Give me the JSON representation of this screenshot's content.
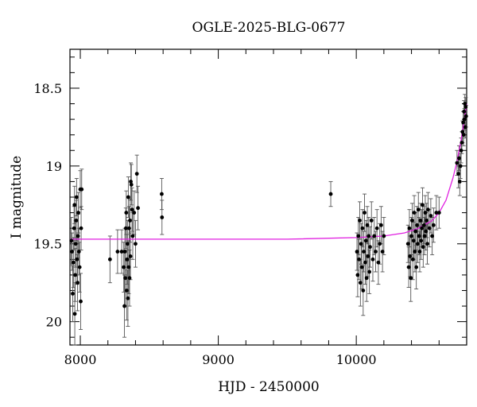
{
  "chart_data": {
    "type": "scatter",
    "title": "OGLE-2025-BLG-0677",
    "xlabel": "HJD - 2450000",
    "ylabel": "I magnitude",
    "xlim": [
      7925,
      10800
    ],
    "ylim": [
      20.15,
      18.25
    ],
    "y_inverted": true,
    "xticks": [
      8000,
      9000,
      10000
    ],
    "xtick_labels": [
      "8000",
      "9000",
      "10000"
    ],
    "yticks": [
      18.5,
      19,
      19.5,
      20
    ],
    "ytick_labels": [
      "18.5",
      "19",
      "19.5",
      "20"
    ],
    "grid": false,
    "colors": {
      "points": "#000000",
      "errorbars": "#555555",
      "model": "#e020e0"
    },
    "model_curve": {
      "name": "",
      "x": [
        7925,
        8500,
        9000,
        9500,
        10000,
        10200,
        10350,
        10450,
        10550,
        10600,
        10650,
        10700,
        10730,
        10760,
        10780,
        10800
      ],
      "y": [
        19.47,
        19.47,
        19.47,
        19.47,
        19.46,
        19.45,
        19.43,
        19.4,
        19.35,
        19.3,
        19.22,
        19.08,
        18.97,
        18.83,
        18.72,
        18.6
      ]
    },
    "series": [
      {
        "name": "",
        "points": [
          {
            "x": 7935,
            "y": 19.48,
            "err": 0.15
          },
          {
            "x": 7940,
            "y": 19.55,
            "err": 0.12
          },
          {
            "x": 7945,
            "y": 19.82,
            "err": 0.18
          },
          {
            "x": 7950,
            "y": 19.62,
            "err": 0.16
          },
          {
            "x": 7955,
            "y": 19.4,
            "err": 0.14
          },
          {
            "x": 7958,
            "y": 19.25,
            "err": 0.12
          },
          {
            "x": 7960,
            "y": 19.95,
            "err": 0.2
          },
          {
            "x": 7963,
            "y": 19.7,
            "err": 0.17
          },
          {
            "x": 7966,
            "y": 19.5,
            "err": 0.15
          },
          {
            "x": 7970,
            "y": 19.35,
            "err": 0.13
          },
          {
            "x": 7973,
            "y": 19.2,
            "err": 0.12
          },
          {
            "x": 7976,
            "y": 19.6,
            "err": 0.16
          },
          {
            "x": 7980,
            "y": 19.75,
            "err": 0.18
          },
          {
            "x": 7983,
            "y": 19.45,
            "err": 0.14
          },
          {
            "x": 7986,
            "y": 19.3,
            "err": 0.13
          },
          {
            "x": 7990,
            "y": 19.55,
            "err": 0.15
          },
          {
            "x": 7995,
            "y": 19.65,
            "err": 0.16
          },
          {
            "x": 8000,
            "y": 19.15,
            "err": 0.12
          },
          {
            "x": 8003,
            "y": 19.87,
            "err": 0.18
          },
          {
            "x": 8006,
            "y": 19.4,
            "err": 0.14
          },
          {
            "x": 8010,
            "y": 19.15,
            "err": 0.13
          },
          {
            "x": 8215,
            "y": 19.6,
            "err": 0.15
          },
          {
            "x": 8270,
            "y": 19.55,
            "err": 0.14
          },
          {
            "x": 8300,
            "y": 19.55,
            "err": 0.14
          },
          {
            "x": 8315,
            "y": 19.65,
            "err": 0.16
          },
          {
            "x": 8320,
            "y": 19.9,
            "err": 0.2
          },
          {
            "x": 8323,
            "y": 19.55,
            "err": 0.15
          },
          {
            "x": 8326,
            "y": 19.72,
            "err": 0.18
          },
          {
            "x": 8330,
            "y": 19.4,
            "err": 0.13
          },
          {
            "x": 8333,
            "y": 19.3,
            "err": 0.14
          },
          {
            "x": 8336,
            "y": 19.8,
            "err": 0.19
          },
          {
            "x": 8339,
            "y": 19.6,
            "err": 0.16
          },
          {
            "x": 8342,
            "y": 19.5,
            "err": 0.15
          },
          {
            "x": 8345,
            "y": 19.85,
            "err": 0.18
          },
          {
            "x": 8348,
            "y": 19.2,
            "err": 0.13
          },
          {
            "x": 8351,
            "y": 19.65,
            "err": 0.17
          },
          {
            "x": 8354,
            "y": 19.4,
            "err": 0.14
          },
          {
            "x": 8357,
            "y": 19.72,
            "err": 0.18
          },
          {
            "x": 8360,
            "y": 19.35,
            "err": 0.14
          },
          {
            "x": 8363,
            "y": 19.58,
            "err": 0.15
          },
          {
            "x": 8366,
            "y": 19.1,
            "err": 0.12
          },
          {
            "x": 8370,
            "y": 19.12,
            "err": 0.13
          },
          {
            "x": 8375,
            "y": 19.28,
            "err": 0.14
          },
          {
            "x": 8380,
            "y": 19.45,
            "err": 0.15
          },
          {
            "x": 8390,
            "y": 19.3,
            "err": 0.14
          },
          {
            "x": 8400,
            "y": 19.5,
            "err": 0.15
          },
          {
            "x": 8410,
            "y": 19.05,
            "err": 0.12
          },
          {
            "x": 8418,
            "y": 19.27,
            "err": 0.14
          },
          {
            "x": 8590,
            "y": 19.18,
            "err": 0.1
          },
          {
            "x": 8592,
            "y": 19.33,
            "err": 0.11
          },
          {
            "x": 9815,
            "y": 19.18,
            "err": 0.08
          },
          {
            "x": 10005,
            "y": 19.55,
            "err": 0.12
          },
          {
            "x": 10010,
            "y": 19.7,
            "err": 0.14
          },
          {
            "x": 10015,
            "y": 19.45,
            "err": 0.12
          },
          {
            "x": 10020,
            "y": 19.6,
            "err": 0.13
          },
          {
            "x": 10025,
            "y": 19.35,
            "err": 0.12
          },
          {
            "x": 10030,
            "y": 19.75,
            "err": 0.15
          },
          {
            "x": 10035,
            "y": 19.5,
            "err": 0.13
          },
          {
            "x": 10040,
            "y": 19.65,
            "err": 0.14
          },
          {
            "x": 10045,
            "y": 19.4,
            "err": 0.12
          },
          {
            "x": 10050,
            "y": 19.8,
            "err": 0.16
          },
          {
            "x": 10055,
            "y": 19.55,
            "err": 0.13
          },
          {
            "x": 10060,
            "y": 19.3,
            "err": 0.12
          },
          {
            "x": 10065,
            "y": 19.62,
            "err": 0.14
          },
          {
            "x": 10070,
            "y": 19.48,
            "err": 0.13
          },
          {
            "x": 10075,
            "y": 19.72,
            "err": 0.15
          },
          {
            "x": 10080,
            "y": 19.38,
            "err": 0.12
          },
          {
            "x": 10085,
            "y": 19.58,
            "err": 0.13
          },
          {
            "x": 10090,
            "y": 19.45,
            "err": 0.12
          },
          {
            "x": 10095,
            "y": 19.68,
            "err": 0.14
          },
          {
            "x": 10100,
            "y": 19.52,
            "err": 0.13
          },
          {
            "x": 10110,
            "y": 19.35,
            "err": 0.12
          },
          {
            "x": 10120,
            "y": 19.6,
            "err": 0.14
          },
          {
            "x": 10130,
            "y": 19.45,
            "err": 0.12
          },
          {
            "x": 10140,
            "y": 19.55,
            "err": 0.13
          },
          {
            "x": 10150,
            "y": 19.4,
            "err": 0.12
          },
          {
            "x": 10160,
            "y": 19.62,
            "err": 0.14
          },
          {
            "x": 10170,
            "y": 19.5,
            "err": 0.13
          },
          {
            "x": 10180,
            "y": 19.38,
            "err": 0.12
          },
          {
            "x": 10190,
            "y": 19.55,
            "err": 0.13
          },
          {
            "x": 10200,
            "y": 19.45,
            "err": 0.12
          },
          {
            "x": 10375,
            "y": 19.5,
            "err": 0.12
          },
          {
            "x": 10380,
            "y": 19.65,
            "err": 0.13
          },
          {
            "x": 10385,
            "y": 19.4,
            "err": 0.12
          },
          {
            "x": 10390,
            "y": 19.58,
            "err": 0.13
          },
          {
            "x": 10395,
            "y": 19.72,
            "err": 0.15
          },
          {
            "x": 10400,
            "y": 19.45,
            "err": 0.12
          },
          {
            "x": 10405,
            "y": 19.35,
            "err": 0.11
          },
          {
            "x": 10410,
            "y": 19.6,
            "err": 0.13
          },
          {
            "x": 10415,
            "y": 19.48,
            "err": 0.12
          },
          {
            "x": 10420,
            "y": 19.3,
            "err": 0.11
          },
          {
            "x": 10425,
            "y": 19.55,
            "err": 0.13
          },
          {
            "x": 10430,
            "y": 19.42,
            "err": 0.12
          },
          {
            "x": 10435,
            "y": 19.65,
            "err": 0.14
          },
          {
            "x": 10440,
            "y": 19.38,
            "err": 0.12
          },
          {
            "x": 10445,
            "y": 19.5,
            "err": 0.12
          },
          {
            "x": 10450,
            "y": 19.28,
            "err": 0.11
          },
          {
            "x": 10455,
            "y": 19.45,
            "err": 0.12
          },
          {
            "x": 10460,
            "y": 19.55,
            "err": 0.13
          },
          {
            "x": 10465,
            "y": 19.35,
            "err": 0.11
          },
          {
            "x": 10470,
            "y": 19.48,
            "err": 0.12
          },
          {
            "x": 10475,
            "y": 19.4,
            "err": 0.12
          },
          {
            "x": 10480,
            "y": 19.25,
            "err": 0.11
          },
          {
            "x": 10485,
            "y": 19.52,
            "err": 0.13
          },
          {
            "x": 10490,
            "y": 19.38,
            "err": 0.12
          },
          {
            "x": 10495,
            "y": 19.45,
            "err": 0.12
          },
          {
            "x": 10500,
            "y": 19.3,
            "err": 0.11
          },
          {
            "x": 10505,
            "y": 19.42,
            "err": 0.12
          },
          {
            "x": 10510,
            "y": 19.35,
            "err": 0.11
          },
          {
            "x": 10515,
            "y": 19.5,
            "err": 0.13
          },
          {
            "x": 10520,
            "y": 19.28,
            "err": 0.11
          },
          {
            "x": 10530,
            "y": 19.4,
            "err": 0.12
          },
          {
            "x": 10540,
            "y": 19.32,
            "err": 0.11
          },
          {
            "x": 10550,
            "y": 19.45,
            "err": 0.12
          },
          {
            "x": 10560,
            "y": 19.38,
            "err": 0.11
          },
          {
            "x": 10580,
            "y": 19.3,
            "err": 0.11
          },
          {
            "x": 10600,
            "y": 19.3,
            "err": 0.1
          },
          {
            "x": 10730,
            "y": 18.98,
            "err": 0.08
          },
          {
            "x": 10740,
            "y": 19.05,
            "err": 0.09
          },
          {
            "x": 10745,
            "y": 18.95,
            "err": 0.08
          },
          {
            "x": 10750,
            "y": 19.1,
            "err": 0.09
          },
          {
            "x": 10755,
            "y": 19.0,
            "err": 0.08
          },
          {
            "x": 10760,
            "y": 18.9,
            "err": 0.08
          },
          {
            "x": 10765,
            "y": 18.85,
            "err": 0.07
          },
          {
            "x": 10770,
            "y": 18.78,
            "err": 0.07
          },
          {
            "x": 10775,
            "y": 18.72,
            "err": 0.07
          },
          {
            "x": 10778,
            "y": 18.8,
            "err": 0.07
          },
          {
            "x": 10781,
            "y": 18.65,
            "err": 0.07
          },
          {
            "x": 10784,
            "y": 18.7,
            "err": 0.07
          },
          {
            "x": 10787,
            "y": 18.6,
            "err": 0.06
          },
          {
            "x": 10790,
            "y": 18.75,
            "err": 0.07
          },
          {
            "x": 10793,
            "y": 18.62,
            "err": 0.06
          },
          {
            "x": 10796,
            "y": 18.68,
            "err": 0.07
          }
        ]
      }
    ]
  }
}
